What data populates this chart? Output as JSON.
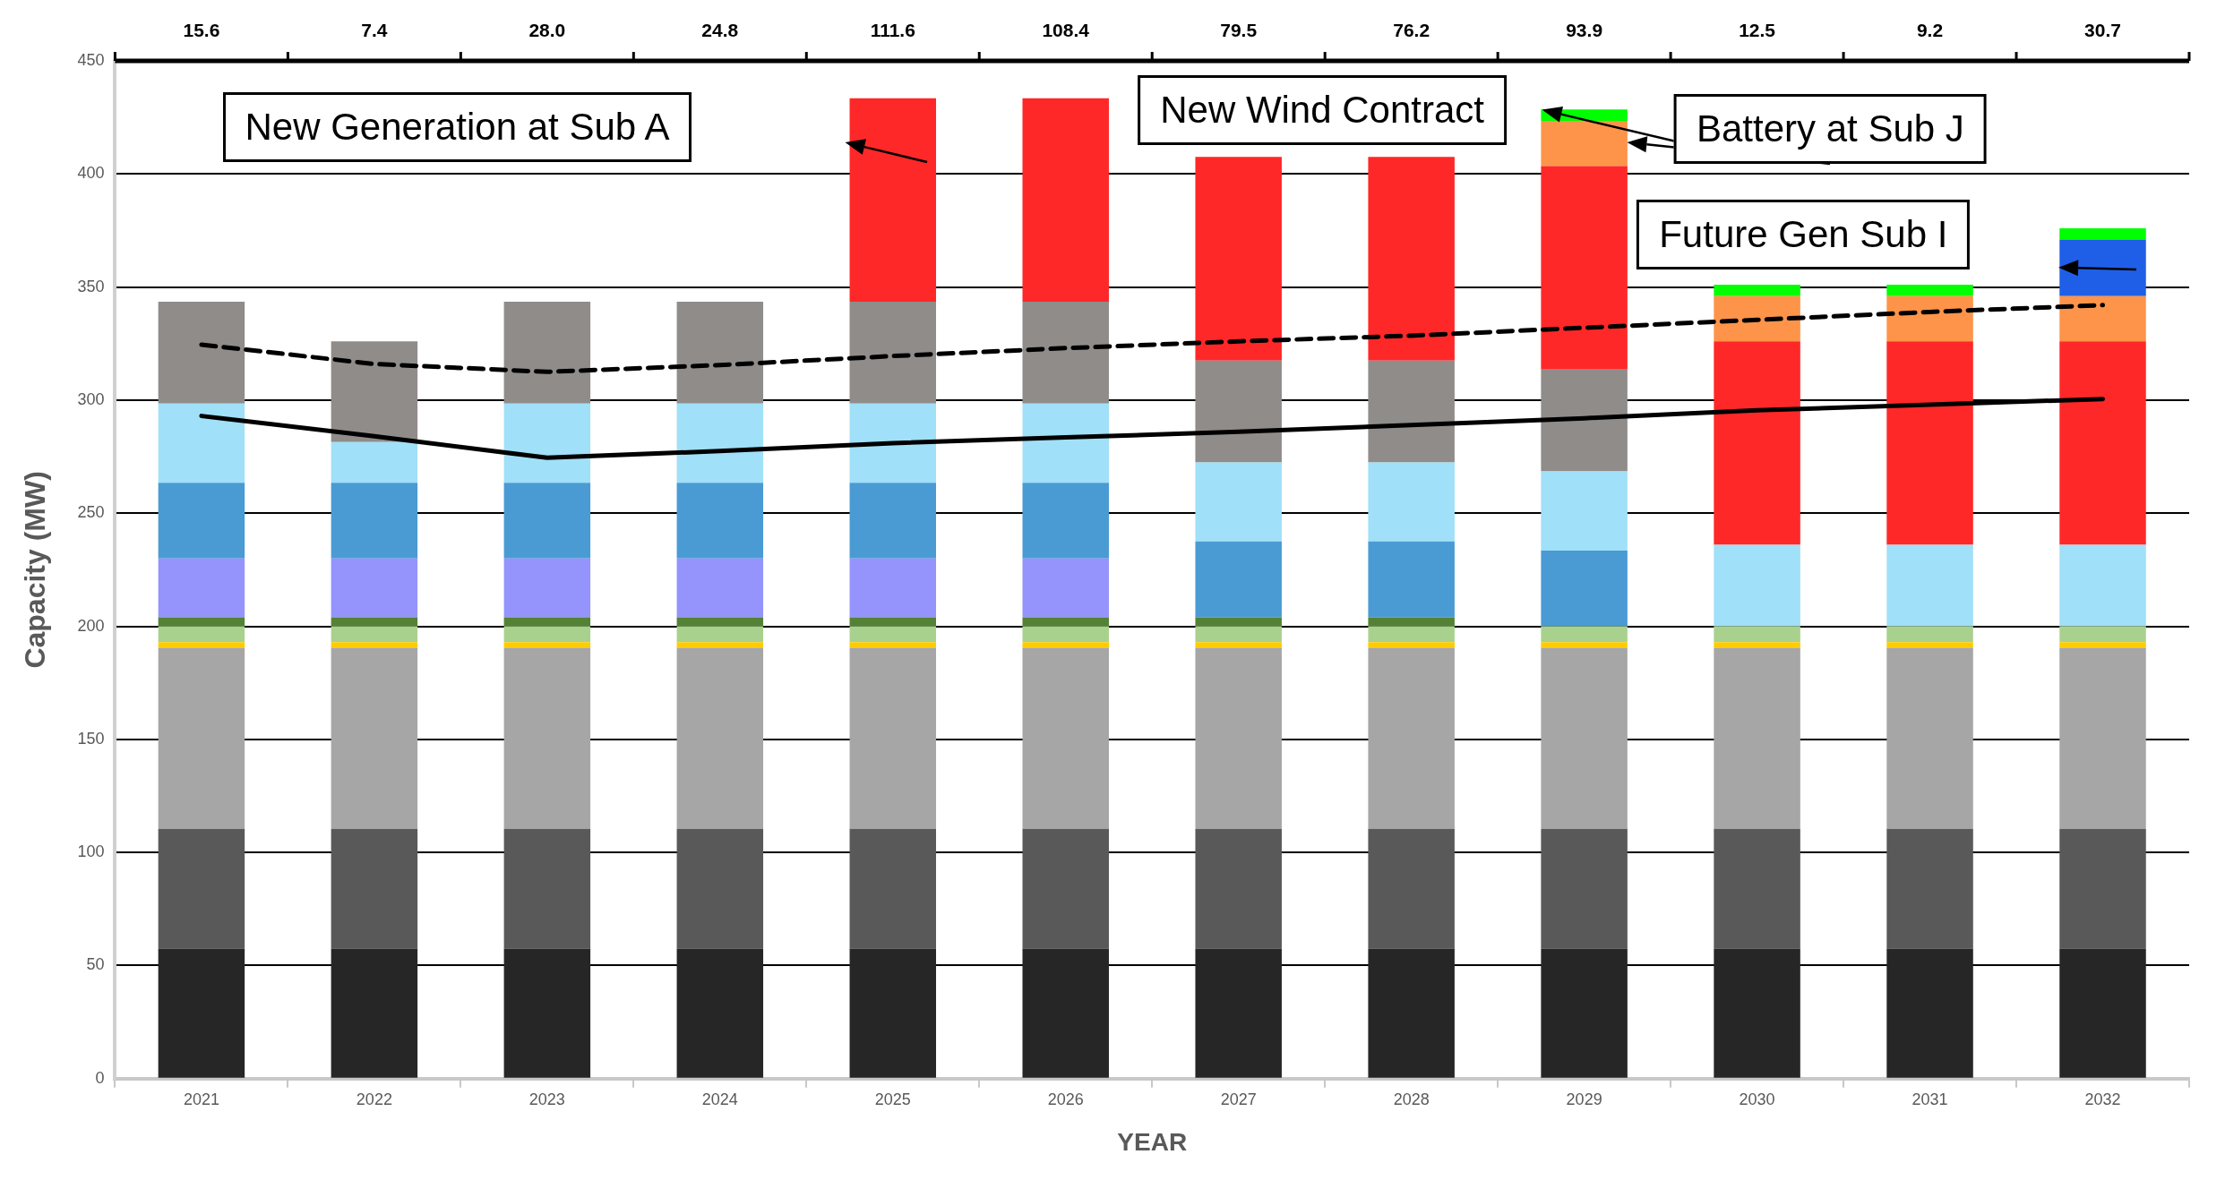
{
  "chart_data": {
    "type": "bar",
    "stacked": true,
    "categories": [
      "2021",
      "2022",
      "2023",
      "2024",
      "2025",
      "2026",
      "2027",
      "2028",
      "2029",
      "2030",
      "2031",
      "2032"
    ],
    "series": [
      {
        "color": "#262626",
        "values": [
          57.5,
          57.5,
          57.5,
          57.5,
          57.5,
          57.5,
          57.5,
          57.5,
          57.5,
          57.5,
          57.5,
          57.5
        ]
      },
      {
        "color": "#595959",
        "values": [
          53,
          53,
          53,
          53,
          53,
          53,
          53,
          53,
          53,
          53,
          53,
          53
        ]
      },
      {
        "color": "#a6a6a6",
        "values": [
          80,
          80,
          80,
          80,
          80,
          80,
          80,
          80,
          80,
          80,
          80,
          80
        ]
      },
      {
        "color": "#ffcc00",
        "values": [
          2.5,
          2.5,
          2.5,
          2.5,
          2.5,
          2.5,
          2.5,
          2.5,
          2.5,
          2.5,
          2.5,
          2.5
        ]
      },
      {
        "color": "#a9d18e",
        "values": [
          7,
          7,
          7,
          7,
          7,
          7,
          7,
          7,
          7,
          7,
          7,
          7
        ]
      },
      {
        "color": "#548235",
        "values": [
          4,
          4,
          4,
          4,
          4,
          4,
          4,
          4,
          null,
          null,
          null,
          null
        ]
      },
      {
        "color": "#9494fc",
        "values": [
          26,
          26,
          26,
          26,
          26,
          26,
          null,
          null,
          null,
          null,
          null,
          null
        ]
      },
      {
        "color": "#4a9bd4",
        "values": [
          33.5,
          33.5,
          33.5,
          33.5,
          33.5,
          33.5,
          33.5,
          33.5,
          33.5,
          null,
          null,
          null
        ]
      },
      {
        "color": "#a0e0f8",
        "values": [
          35,
          18,
          35,
          35,
          35,
          35,
          35,
          35,
          35,
          36,
          36,
          36
        ]
      },
      {
        "color": "#908c8a",
        "values": [
          45,
          44.5,
          45,
          45,
          45,
          45,
          45,
          45,
          45,
          null,
          null,
          null
        ]
      },
      {
        "color": "#ff2828",
        "values": [
          null,
          null,
          null,
          null,
          90,
          90,
          90,
          90,
          90,
          90,
          90,
          90
        ]
      },
      {
        "color": "#fd9449",
        "values": [
          null,
          null,
          null,
          null,
          null,
          null,
          null,
          null,
          20,
          20,
          20,
          20
        ]
      },
      {
        "color": "#1f5fe8",
        "values": [
          null,
          null,
          null,
          null,
          null,
          null,
          null,
          null,
          null,
          null,
          null,
          25
        ]
      },
      {
        "color": "#00ff00",
        "values": [
          null,
          null,
          null,
          null,
          null,
          null,
          null,
          null,
          5,
          5,
          5,
          5
        ]
      },
      {
        "type": "line",
        "color": "#000000",
        "line_style": "solid",
        "values": [
          293,
          284,
          274.5,
          277.5,
          281,
          283.5,
          286,
          289,
          292,
          295.5,
          298,
          300.5
        ]
      },
      {
        "type": "line",
        "color": "#000000",
        "line_style": "dashed",
        "values": [
          324.5,
          316,
          312.5,
          315.5,
          319.5,
          323,
          326,
          328.5,
          332,
          335.5,
          339,
          342
        ]
      }
    ],
    "marker": "none",
    "ylim": [
      0,
      450
    ],
    "yticks": [
      0,
      50,
      100,
      150,
      200,
      250,
      300,
      350,
      400,
      450
    ],
    "ylabel": "Capacity (MW)",
    "xlabel": "YEAR",
    "grid": "y",
    "legend": false,
    "annotations": [
      "15.6",
      "7.4",
      "28.0",
      "24.8",
      "111.6",
      "108.4",
      "79.5",
      "76.2",
      "93.9",
      "12.5",
      "9.2",
      "30.7",
      "New Generation at Sub A",
      "New Wind Contract",
      "Battery at Sub J",
      "Future Gen Sub I"
    ]
  }
}
